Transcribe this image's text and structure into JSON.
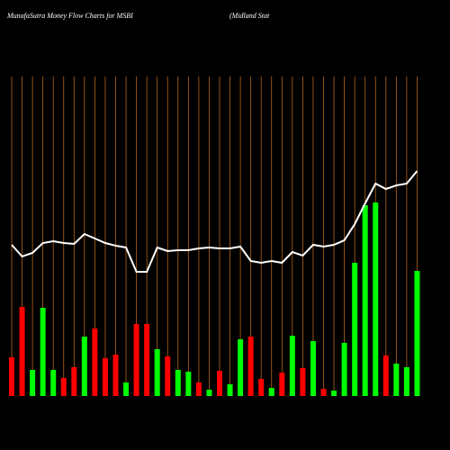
{
  "chart_data": {
    "type": "bar-line",
    "title": "MunafaSutra  Money Flow  Charts for MSBI",
    "subtitle": "(Midland Stat",
    "series": [
      {
        "name": "money flow",
        "type": "bar",
        "values": [
          43,
          99,
          29,
          98,
          29,
          20,
          32,
          66,
          75,
          42,
          46,
          15,
          80,
          80,
          52,
          44,
          29,
          27,
          15,
          7,
          28,
          13,
          63,
          66,
          19,
          9,
          26,
          67,
          31,
          61,
          8,
          6,
          59,
          148,
          212,
          215,
          45,
          36,
          32,
          139
        ],
        "colors": [
          "#ff0000",
          "#ff0000",
          "#00ff00",
          "#00ff00",
          "#00ff00",
          "#ff0000",
          "#ff0000",
          "#00ff00",
          "#ff0000",
          "#ff0000",
          "#ff0000",
          "#00ff00",
          "#ff0000",
          "#ff0000",
          "#00ff00",
          "#ff0000",
          "#00ff00",
          "#00ff00",
          "#ff0000",
          "#00ff00",
          "#ff0000",
          "#00ff00",
          "#00ff00",
          "#ff0000",
          "#ff0000",
          "#00ff00",
          "#ff0000",
          "#00ff00",
          "#ff0000",
          "#00ff00",
          "#ff0000",
          "#00ff00",
          "#00ff00",
          "#00ff00",
          "#00ff00",
          "#00ff00",
          "#ff0000",
          "#00ff00",
          "#00ff00",
          "#00ff00"
        ]
      },
      {
        "name": "price",
        "type": "line",
        "color": "#ffffff",
        "values": [
          168,
          155,
          159,
          170,
          172,
          170,
          169,
          180,
          175,
          170,
          167,
          165,
          138,
          138,
          165,
          161,
          162,
          162,
          164,
          165,
          164,
          164,
          166,
          150,
          148,
          150,
          148,
          160,
          156,
          168,
          166,
          168,
          173,
          191,
          214,
          236,
          230,
          234,
          236,
          250
        ]
      }
    ],
    "grid_color": "#b8651a"
  }
}
